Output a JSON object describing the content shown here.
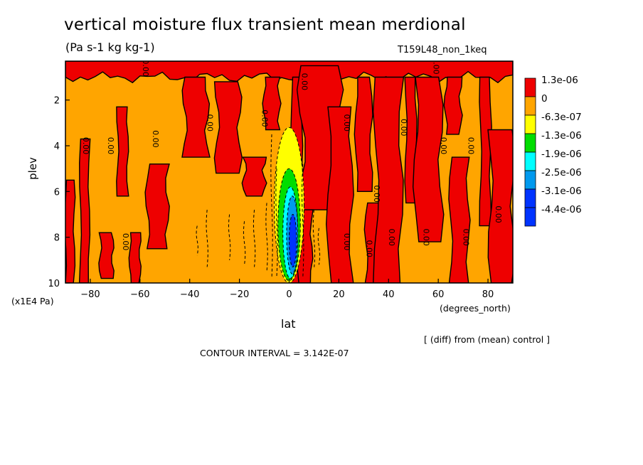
{
  "title": "vertical moisture flux transient mean merdional",
  "units": "(Pa s-1 kg kg-1)",
  "run_name": "T159L48_non_1keq",
  "y_unit": "(x1E4 Pa)",
  "x_unit": "(degrees_north)",
  "diff_note": "[ (diff) from (mean) control ]",
  "contour_interval": "CONTOUR INTERVAL = 3.142E-07",
  "chart_data": {
    "type": "heatmap",
    "title": "vertical moisture flux transient mean merdional",
    "xlabel": "lat",
    "ylabel": "plev",
    "xlim": [
      -90,
      90
    ],
    "ylim": [
      10,
      0.3
    ],
    "xticks": [
      -80,
      -60,
      -40,
      -20,
      0,
      20,
      40,
      60,
      80
    ],
    "xtick_labels": [
      "−80",
      "−60",
      "−40",
      "−20",
      "0",
      "20",
      "40",
      "60",
      "80"
    ],
    "yticks": [
      2,
      4,
      6,
      8,
      10
    ],
    "ytick_labels": [
      "2",
      "4",
      "6",
      "8",
      "10"
    ],
    "legend": {
      "placement": "right",
      "entries": [
        {
          "label": "1.3e-06",
          "color": "#ee0000"
        },
        {
          "label": "0",
          "color": "#ffa500"
        },
        {
          "label": "-6.3e-07",
          "color": "#ffff00"
        },
        {
          "label": "-1.3e-06",
          "color": "#00dd00"
        },
        {
          "label": "-1.9e-06",
          "color": "#00ffff"
        },
        {
          "label": "-2.5e-06",
          "color": "#0099ee"
        },
        {
          "label": "-3.1e-06",
          "color": "#0033ff"
        },
        {
          "label": "-4.4e-06",
          "color": "#0033ff"
        }
      ]
    },
    "background_color": "#ffa500",
    "positive_regions": [
      {
        "lat": [
          -90,
          -86.5
        ],
        "plev": [
          5.5,
          10
        ]
      },
      {
        "lat": [
          -84,
          -80.5
        ],
        "plev": [
          3.7,
          10
        ]
      },
      {
        "lat": [
          -69,
          -65
        ],
        "plev": [
          2.3,
          6.2
        ]
      },
      {
        "lat": [
          -76,
          -71
        ],
        "plev": [
          7.8,
          9.8
        ]
      },
      {
        "lat": [
          -64,
          -60
        ],
        "plev": [
          7.8,
          10
        ]
      },
      {
        "lat": [
          -57,
          -49
        ],
        "plev": [
          4.8,
          8.5
        ]
      },
      {
        "lat": [
          -42,
          -33
        ],
        "plev": [
          1,
          4.5
        ]
      },
      {
        "lat": [
          -29,
          -20
        ],
        "plev": [
          1.2,
          5.2
        ]
      },
      {
        "lat": [
          -18,
          -10
        ],
        "plev": [
          4.5,
          6.2
        ]
      },
      {
        "lat": [
          -10,
          -4
        ],
        "plev": [
          1,
          3.3
        ]
      },
      {
        "lat": [
          1,
          5
        ],
        "plev": [
          1,
          10
        ]
      },
      {
        "lat": [
          5,
          20
        ],
        "plev": [
          0.5,
          6.8
        ]
      },
      {
        "lat": [
          4,
          9
        ],
        "plev": [
          6.8,
          10
        ]
      },
      {
        "lat": [
          16,
          25
        ],
        "plev": [
          2.3,
          10
        ]
      },
      {
        "lat": [
          27,
          33
        ],
        "plev": [
          1,
          6
        ]
      },
      {
        "lat": [
          31,
          37
        ],
        "plev": [
          6.5,
          10
        ]
      },
      {
        "lat": [
          35,
          45
        ],
        "plev": [
          1,
          10
        ]
      },
      {
        "lat": [
          47,
          51
        ],
        "plev": [
          1,
          6.5
        ]
      },
      {
        "lat": [
          51,
          61
        ],
        "plev": [
          1,
          8.2
        ]
      },
      {
        "lat": [
          63,
          69
        ],
        "plev": [
          1,
          3.5
        ]
      },
      {
        "lat": [
          65,
          72
        ],
        "plev": [
          4.5,
          10
        ]
      },
      {
        "lat": [
          77,
          81
        ],
        "plev": [
          1,
          7.5
        ]
      },
      {
        "lat": [
          81,
          90
        ],
        "plev": [
          3.3,
          10
        ]
      }
    ],
    "top_band": {
      "lat": [
        -90,
        90
      ],
      "plev": [
        0.3,
        1.0
      ]
    },
    "negative_core": [
      {
        "lat": [
          -6,
          6
        ],
        "plev": [
          3.2,
          10
        ],
        "level": "-6.3e-07"
      },
      {
        "lat": [
          -4.5,
          4.5
        ],
        "plev": [
          5.0,
          9.9
        ],
        "level": "-1.3e-06"
      },
      {
        "lat": [
          -2.5,
          3.5
        ],
        "plev": [
          5.8,
          9.8
        ],
        "level": "-1.9e-06"
      },
      {
        "lat": [
          -1,
          3.5
        ],
        "plev": [
          6.2,
          9.6
        ],
        "level": "-2.5e-06"
      },
      {
        "lat": [
          0,
          3
        ],
        "plev": [
          7.0,
          9.3
        ],
        "level": "-3.1e-06"
      }
    ],
    "zero_contour_labels": [
      {
        "lat": -58,
        "plev": 0.6,
        "text": "0.00"
      },
      {
        "lat": -82,
        "plev": 4.0,
        "text": "0.00"
      },
      {
        "lat": -72,
        "plev": 4.0,
        "text": "0.00"
      },
      {
        "lat": -54,
        "plev": 3.7,
        "text": "0.00"
      },
      {
        "lat": -32,
        "plev": 3.0,
        "text": "0.00"
      },
      {
        "lat": -10,
        "plev": 2.8,
        "text": "0.00"
      },
      {
        "lat": 6,
        "plev": 1.2,
        "text": "0.00"
      },
      {
        "lat": 23,
        "plev": 3.0,
        "text": "0.00"
      },
      {
        "lat": 46,
        "plev": 3.2,
        "text": "0.00"
      },
      {
        "lat": 59,
        "plev": 0.5,
        "text": "0.00"
      },
      {
        "lat": 62,
        "plev": 4.0,
        "text": "0.00"
      },
      {
        "lat": 73,
        "plev": 4.0,
        "text": "0.00"
      },
      {
        "lat": 84,
        "plev": 7.0,
        "text": "0.00"
      },
      {
        "lat": -66,
        "plev": 8.2,
        "text": "0.00"
      },
      {
        "lat": 23,
        "plev": 8.2,
        "text": "0.00"
      },
      {
        "lat": 32,
        "plev": 8.5,
        "text": "0.00"
      },
      {
        "lat": 41,
        "plev": 8.0,
        "text": "0.00"
      },
      {
        "lat": 55,
        "plev": 8.0,
        "text": "0.00"
      },
      {
        "lat": 71,
        "plev": 8.0,
        "text": "0.00"
      },
      {
        "lat": 35,
        "plev": 6.1,
        "text": "0.00"
      }
    ]
  }
}
